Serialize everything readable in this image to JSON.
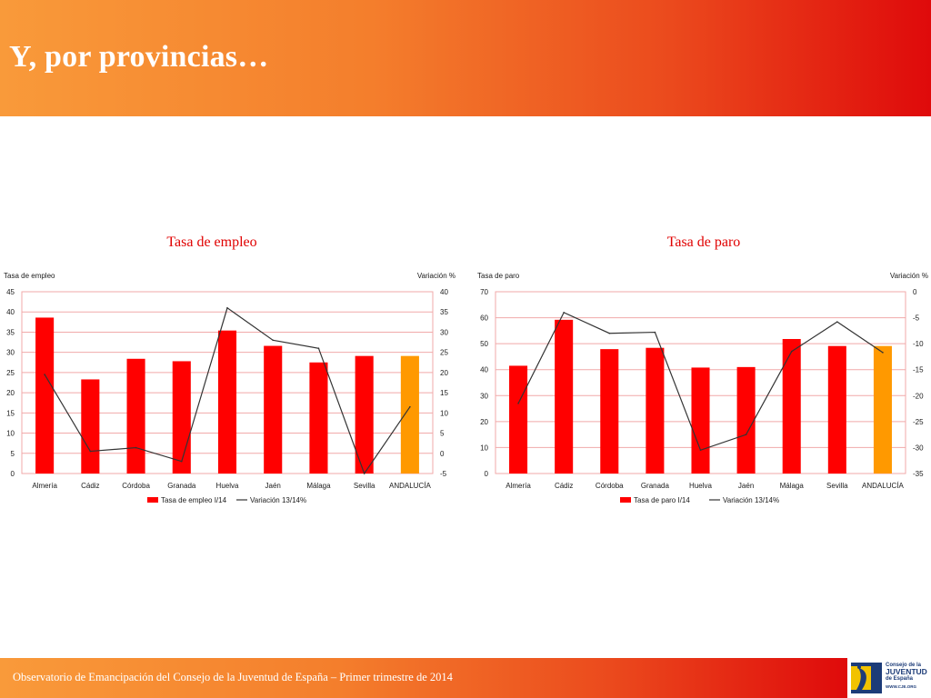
{
  "header": {
    "title": "Y, por provincias…"
  },
  "footer": {
    "text": "Observatorio de Emancipación del Consejo de la Juventud de España – Primer trimestre de 2014"
  },
  "logo": {
    "line1": "Consejo de la",
    "line2": "JUVENTUD",
    "line3": "de España",
    "url": "WWW.CJE.ORG"
  },
  "colors": {
    "bar": "#ff0000",
    "highlight": "#ff9900",
    "line": "#333333",
    "grid": "#f1a9a9",
    "title": "#e00000"
  },
  "chart_data": [
    {
      "type": "bar",
      "title": "Tasa de empleo",
      "ylabel": "Tasa de empleo",
      "y2label": "Variación %",
      "categories": [
        "Almería",
        "Cádiz",
        "Córdoba",
        "Granada",
        "Huelva",
        "Jaén",
        "Málaga",
        "Sevilla",
        "ANDALUCÍA"
      ],
      "ylim": [
        0,
        45
      ],
      "yticks": [
        0,
        5,
        10,
        15,
        20,
        25,
        30,
        35,
        40,
        45
      ],
      "y2lim": [
        -5,
        40
      ],
      "y2ticks": [
        -5,
        0,
        5,
        10,
        15,
        20,
        25,
        30,
        35,
        40
      ],
      "highlight_index": 8,
      "grid": true,
      "legend_position": "bottom",
      "series": [
        {
          "name": "Tasa de empleo I/14",
          "type": "bar",
          "axis": "left",
          "values": [
            38.6,
            23.3,
            28.4,
            27.8,
            35.4,
            31.6,
            27.5,
            29.1,
            29.1
          ]
        },
        {
          "name": "Variación 13/14%",
          "type": "line",
          "axis": "right",
          "values": [
            19.5,
            0.5,
            1.4,
            -2,
            36,
            28,
            26,
            -5,
            11.5
          ]
        }
      ]
    },
    {
      "type": "bar",
      "title": "Tasa de paro",
      "ylabel": "Tasa de paro",
      "y2label": "Variación %",
      "categories": [
        "Almería",
        "Cádiz",
        "Córdoba",
        "Granada",
        "Huelva",
        "Jaén",
        "Málaga",
        "Sevilla",
        "ANDALUCÍA"
      ],
      "ylim": [
        0,
        70
      ],
      "yticks": [
        0,
        10,
        20,
        30,
        40,
        50,
        60,
        70
      ],
      "y2lim": [
        -35,
        0
      ],
      "y2ticks": [
        -35,
        -30,
        -25,
        -20,
        -15,
        -10,
        -5,
        0
      ],
      "highlight_index": 8,
      "grid": true,
      "legend_position": "bottom",
      "series": [
        {
          "name": "Tasa de paro I/14",
          "type": "bar",
          "axis": "left",
          "values": [
            41.5,
            59.2,
            47.9,
            48.4,
            40.8,
            41,
            51.8,
            49.1,
            49.1
          ]
        },
        {
          "name": "Variación 13/14%",
          "type": "line",
          "axis": "right",
          "values": [
            -21.5,
            -4,
            -8,
            -7.8,
            -30.5,
            -27.5,
            -11.5,
            -5.8,
            -11.7
          ]
        }
      ]
    }
  ]
}
